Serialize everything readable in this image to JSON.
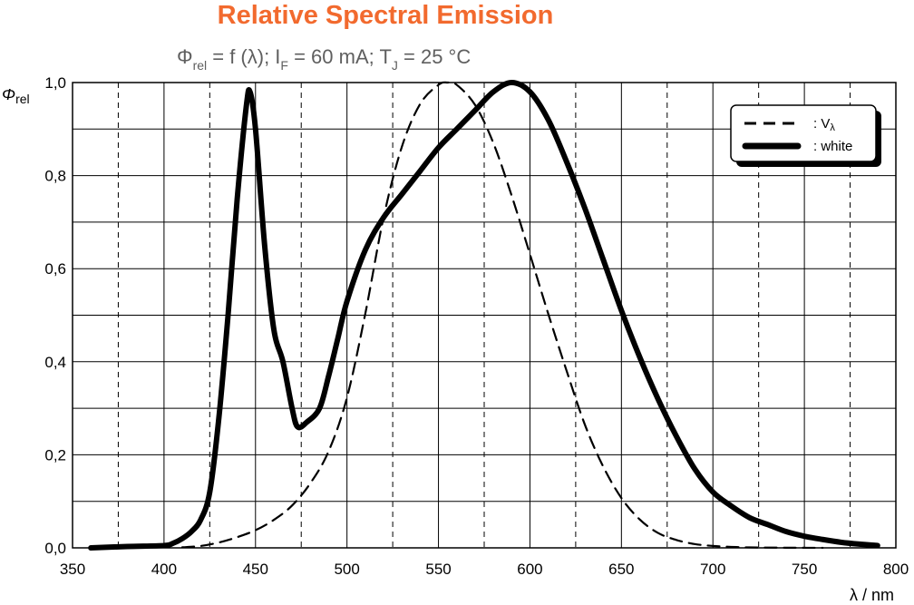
{
  "chart_data": {
    "type": "line",
    "title": "Relative Spectral Emission",
    "subtitle": {
      "base": "Φ",
      "sub1": "rel",
      "mid1": " = f (λ); I",
      "sub2": "F",
      "mid2": " = 60 mA; T",
      "sub3": "J",
      "end": " = 25 °C"
    },
    "ylabel": {
      "base": "Φ",
      "sub": "rel"
    },
    "xlabel": "λ / nm",
    "xlim": [
      350,
      800
    ],
    "ylim": [
      0,
      1
    ],
    "xticks": [
      350,
      400,
      450,
      500,
      550,
      600,
      650,
      700,
      750,
      800
    ],
    "xtick_labels": [
      "350",
      "400",
      "450",
      "500",
      "550",
      "600",
      "650",
      "700",
      "750",
      "800"
    ],
    "yticks": [
      0,
      0.2,
      0.4,
      0.6,
      0.8,
      1.0
    ],
    "ytick_labels": [
      "0,0",
      "0,2",
      "0,4",
      "0,6",
      "0,8",
      "1,0"
    ],
    "grid": true,
    "legend_placement": "top-right",
    "series": [
      {
        "name": "V",
        "name_sub": "λ",
        "label": ": V",
        "style": "dashed",
        "color": "#000000",
        "x": [
          410,
          420,
          430,
          440,
          450,
          460,
          470,
          480,
          490,
          500,
          510,
          520,
          530,
          540,
          550,
          555,
          560,
          570,
          580,
          590,
          600,
          610,
          620,
          630,
          640,
          650,
          660,
          670,
          680,
          690,
          700,
          710,
          720,
          740,
          760
        ],
        "y": [
          0.0012,
          0.004,
          0.0116,
          0.023,
          0.038,
          0.06,
          0.091,
          0.139,
          0.208,
          0.323,
          0.503,
          0.71,
          0.862,
          0.954,
          0.995,
          1.0,
          0.995,
          0.952,
          0.87,
          0.757,
          0.631,
          0.503,
          0.381,
          0.265,
          0.175,
          0.107,
          0.061,
          0.032,
          0.017,
          0.0082,
          0.0041,
          0.0021,
          0.001,
          0.0003,
          0.0001
        ]
      },
      {
        "name": "white",
        "label": ": white",
        "style": "solid",
        "color": "#000000",
        "x": [
          360,
          380,
          400,
          405,
          410,
          415,
          420,
          425,
          430,
          435,
          440,
          445,
          447,
          450,
          455,
          460,
          465,
          470,
          473,
          478,
          485,
          490,
          495,
          500,
          510,
          520,
          530,
          540,
          550,
          560,
          570,
          580,
          590,
          600,
          610,
          620,
          630,
          640,
          650,
          660,
          670,
          680,
          690,
          700,
          710,
          720,
          730,
          740,
          750,
          760,
          770,
          780,
          790
        ],
        "y": [
          0.0,
          0.003,
          0.005,
          0.01,
          0.02,
          0.035,
          0.06,
          0.12,
          0.28,
          0.5,
          0.75,
          0.95,
          0.98,
          0.9,
          0.65,
          0.47,
          0.4,
          0.3,
          0.26,
          0.27,
          0.3,
          0.37,
          0.45,
          0.53,
          0.64,
          0.71,
          0.76,
          0.81,
          0.86,
          0.9,
          0.94,
          0.98,
          1.0,
          0.98,
          0.92,
          0.83,
          0.73,
          0.62,
          0.51,
          0.41,
          0.32,
          0.24,
          0.17,
          0.12,
          0.09,
          0.065,
          0.05,
          0.035,
          0.025,
          0.018,
          0.012,
          0.008,
          0.005
        ]
      }
    ]
  }
}
